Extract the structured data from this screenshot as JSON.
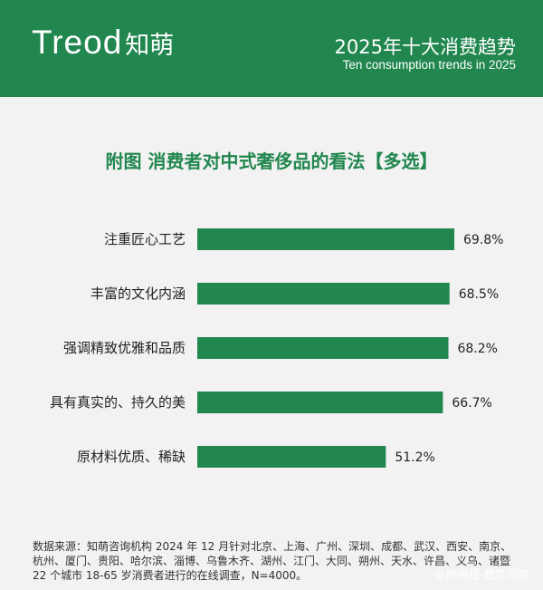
{
  "header": {
    "logo_en": "Treod",
    "logo_zh": "知萌",
    "title": "2025年十大消费趋势",
    "subtitle": "Ten consumption trends in 2025"
  },
  "colors": {
    "brand_green": "#21874f",
    "background": "#f2f2f2"
  },
  "chart_data": {
    "type": "bar",
    "orientation": "horizontal",
    "title": "附图  消费者对中式奢侈品的看法【多选】",
    "categories": [
      "注重匠心工艺",
      "丰富的文化内涵",
      "强调精致优雅和品质",
      "具有真实的、持久的美",
      "原材料优质、稀缺"
    ],
    "values": [
      69.8,
      68.5,
      68.2,
      66.7,
      51.2
    ],
    "value_labels": [
      "69.8%",
      "68.5%",
      "68.2%",
      "66.7%",
      "51.2%"
    ],
    "unit": "%",
    "xlim": [
      0,
      69.8
    ],
    "grid": false,
    "legend": "none"
  },
  "footnote": "数据来源：知萌咨询机构 2024 年 12 月针对北京、上海、广州、深圳、成都、武汉、西安、南京、杭州、厦门、贵阳、哈尔滨、淄博、乌鲁木齐、湖州、江门、大同、朔州、天水、许昌、义乌、诸暨 22 个城市 18-65 岁消费者进行的在线调查，N=4000。",
  "brand_text": "@肖明超-趋势观察"
}
